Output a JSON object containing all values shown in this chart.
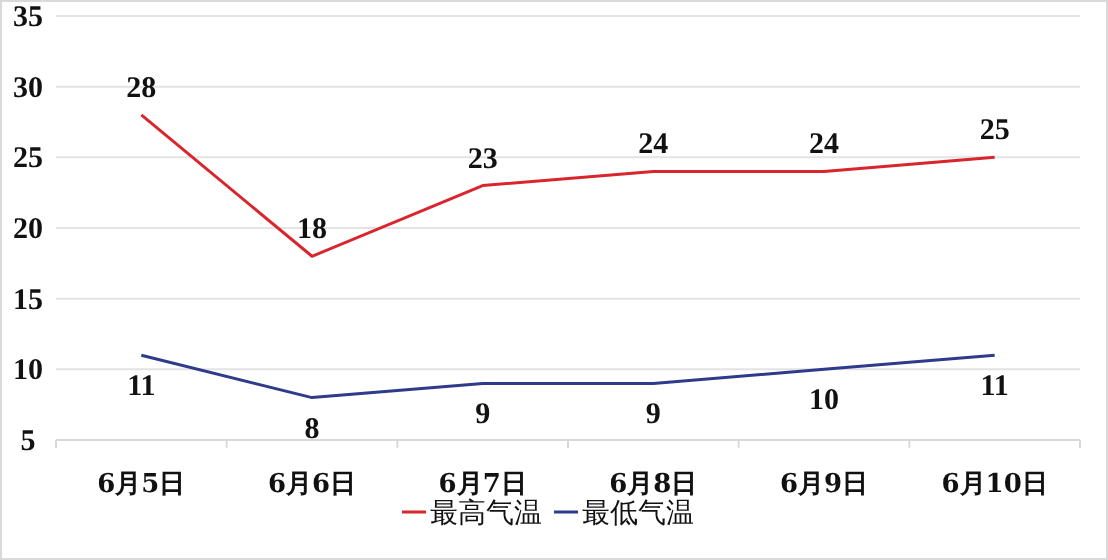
{
  "chart_data": {
    "type": "line",
    "categories": [
      "6月5日",
      "6月6日",
      "6月7日",
      "6月8日",
      "6月9日",
      "6月10日"
    ],
    "series": [
      {
        "name": "最高气温",
        "color": "#d9262e",
        "values": [
          28,
          18,
          23,
          24,
          24,
          25
        ]
      },
      {
        "name": "最低气温",
        "color": "#2e3a8c",
        "values": [
          11,
          8,
          9,
          9,
          10,
          11
        ]
      }
    ],
    "ylim": [
      5,
      35
    ],
    "yticks": [
      5,
      10,
      15,
      20,
      25,
      30,
      35
    ],
    "grid": "y",
    "legend": "bottom",
    "data_labels": true,
    "marker": "none",
    "line_style": "solid"
  }
}
